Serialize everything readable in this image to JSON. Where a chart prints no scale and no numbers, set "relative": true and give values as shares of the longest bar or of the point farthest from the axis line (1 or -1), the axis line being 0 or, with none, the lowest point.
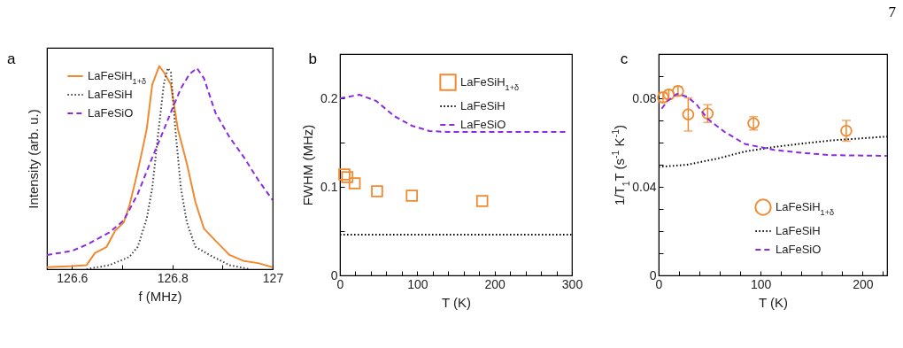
{
  "chart_data": [
    {
      "type": "line",
      "title": "a",
      "xlabel": "f (MHz)",
      "ylabel": "Intensity (arb. u.)",
      "relative": true,
      "tick_labels": "x",
      "legend": "top left",
      "grid": false,
      "xlim": [
        126.55,
        127
      ],
      "xticks": [
        126.6,
        {
          "value": 126.7,
          "label": null
        },
        126.8,
        {
          "value": 126.9,
          "label": null
        },
        127
      ],
      "series": [
        {
          "name": "LaFeSiH$_{1+δ}$",
          "color": "#f08a30",
          "line_style": "solid",
          "x": [
            126.55,
            126.6,
            126.629,
            126.646,
            126.669,
            126.686,
            126.703,
            126.714,
            126.726,
            126.737,
            126.749,
            126.76,
            126.774,
            126.783,
            126.797,
            126.811,
            126.829,
            126.846,
            126.863,
            126.886,
            126.914,
            126.943,
            126.971,
            127.0
          ],
          "values": [
            0.01,
            0.015,
            0.02,
            0.08,
            0.11,
            0.19,
            0.23,
            0.31,
            0.43,
            0.55,
            0.69,
            0.91,
            1.0,
            0.97,
            0.91,
            0.69,
            0.52,
            0.33,
            0.2,
            0.14,
            0.07,
            0.04,
            0.03,
            0.01
          ]
        },
        {
          "name": "LaFeSiH",
          "color": "#404040",
          "line_style": "dotted",
          "x": [
            126.629,
            126.674,
            126.714,
            126.731,
            126.749,
            126.76,
            126.771,
            126.783,
            126.791,
            126.797,
            126.806,
            126.817,
            126.829,
            126.846,
            126.874,
            126.914,
            126.954
          ],
          "values": [
            0,
            0.02,
            0.06,
            0.11,
            0.25,
            0.4,
            0.65,
            0.91,
            0.99,
            0.97,
            0.69,
            0.4,
            0.23,
            0.11,
            0.07,
            0.02,
            0
          ]
        },
        {
          "name": "LaFeSiO",
          "color": "#8a2be2",
          "line_style": "dashed",
          "x": [
            126.55,
            126.6,
            126.629,
            126.674,
            126.703,
            126.731,
            126.76,
            126.777,
            126.8,
            126.817,
            126.834,
            126.849,
            126.863,
            126.886,
            126.914,
            126.943,
            126.971,
            127.0
          ],
          "values": [
            0.07,
            0.09,
            0.12,
            0.18,
            0.24,
            0.37,
            0.55,
            0.65,
            0.79,
            0.89,
            0.96,
            0.99,
            0.94,
            0.77,
            0.65,
            0.55,
            0.44,
            0.34
          ]
        }
      ]
    },
    {
      "type": "line",
      "title": "b",
      "xlabel": "T (K)",
      "ylabel": "FWHM (MHz)",
      "legend": "top right",
      "grid": false,
      "xlim": [
        0,
        300
      ],
      "xticks": [
        0,
        {
          "value": 20,
          "label": null
        },
        {
          "value": 40,
          "label": null
        },
        {
          "value": 60,
          "label": null
        },
        {
          "value": 80,
          "label": null
        },
        100,
        {
          "value": 120,
          "label": null
        },
        {
          "value": 140,
          "label": null
        },
        {
          "value": 160,
          "label": null
        },
        {
          "value": 180,
          "label": null
        },
        200,
        {
          "value": 220,
          "label": null
        },
        {
          "value": 240,
          "label": null
        },
        {
          "value": 260,
          "label": null
        },
        {
          "value": 280,
          "label": null
        },
        300
      ],
      "ylim": [
        0,
        0.25
      ],
      "yticks": [
        0,
        {
          "value": 0.05,
          "label": null
        },
        0.1,
        {
          "value": 0.15,
          "label": null
        },
        0.2,
        {
          "value": 0.25,
          "label": null
        }
      ],
      "series": [
        {
          "name": "LaFeSiH$_{1+δ}$",
          "type": "scatter",
          "marker": "square",
          "color": "#f08a30",
          "x": [
            5.7,
            9.5,
            19,
            48,
            93,
            184
          ],
          "values": [
            0.114,
            0.111,
            0.104,
            0.095,
            0.09,
            0.084
          ]
        },
        {
          "name": "LaFeSiH",
          "color": "#000000",
          "line_style": "dotted",
          "x": [
            0,
            300
          ],
          "values": [
            0.046,
            0.046
          ]
        },
        {
          "name": "LaFeSiO",
          "color": "#8a2be2",
          "line_style": "dashed",
          "x": [
            0,
            25,
            47,
            70,
            93,
            116,
            139,
            295
          ],
          "values": [
            0.2,
            0.204,
            0.197,
            0.18,
            0.169,
            0.163,
            0.162,
            0.162
          ]
        }
      ]
    },
    {
      "type": "line",
      "title": "c",
      "xlabel": "T (K)",
      "ylabel": "1/T$_{1}$T (s$^{-1}$ K$^{-1}$)",
      "legend": "bottom right",
      "grid": false,
      "annotations": [
        "7"
      ],
      "xlim": [
        0,
        224
      ],
      "xticks": [
        0,
        {
          "value": 20,
          "label": null
        },
        {
          "value": 40,
          "label": null
        },
        {
          "value": 60,
          "label": null
        },
        {
          "value": 80,
          "label": null
        },
        100,
        {
          "value": 120,
          "label": null
        },
        {
          "value": 140,
          "label": null
        },
        {
          "value": 160,
          "label": null
        },
        {
          "value": 180,
          "label": null
        },
        200,
        {
          "value": 220,
          "label": null
        }
      ],
      "ylim": [
        0,
        0.1
      ],
      "yticks": [
        0,
        {
          "value": 0.01,
          "label": null
        },
        {
          "value": 0.02,
          "label": null
        },
        {
          "value": 0.03,
          "label": null
        },
        0.04,
        {
          "value": 0.05,
          "label": null
        },
        {
          "value": 0.06,
          "label": null
        },
        {
          "value": 0.07,
          "label": null
        },
        0.08,
        {
          "value": 0.09,
          "label": null
        },
        {
          "value": 0.1,
          "label": null
        }
      ],
      "series": [
        {
          "name": "LaFeSiH$_{1+δ}$",
          "type": "scatter",
          "marker": "circle",
          "color": "#f08a30",
          "x": [
            4.3,
            10,
            19,
            29,
            48,
            93,
            184
          ],
          "values": [
            0.0804,
            0.0817,
            0.0833,
            0.0727,
            0.0731,
            0.0687,
            0.0653
          ],
          "errors": [
            0.0023,
            0.002,
            0.002,
            0.0075,
            0.004,
            0.003,
            0.0047
          ]
        },
        {
          "name": "LaFeSiH",
          "color": "#000000",
          "line_style": "dotted",
          "x": [
            0,
            28,
            57,
            85,
            113,
            142,
            170,
            224
          ],
          "values": [
            0.049,
            0.05,
            0.0527,
            0.056,
            0.058,
            0.0596,
            0.061,
            0.0627
          ]
        },
        {
          "name": "LaFeSiO",
          "color": "#8a2be2",
          "line_style": "dashed",
          "x": [
            3,
            8.5,
            18,
            28,
            37,
            48,
            65,
            85,
            113,
            142,
            170,
            224
          ],
          "values": [
            0.0753,
            0.0787,
            0.082,
            0.0807,
            0.0773,
            0.0707,
            0.0647,
            0.0593,
            0.0567,
            0.0553,
            0.0543,
            0.054
          ]
        }
      ]
    }
  ]
}
